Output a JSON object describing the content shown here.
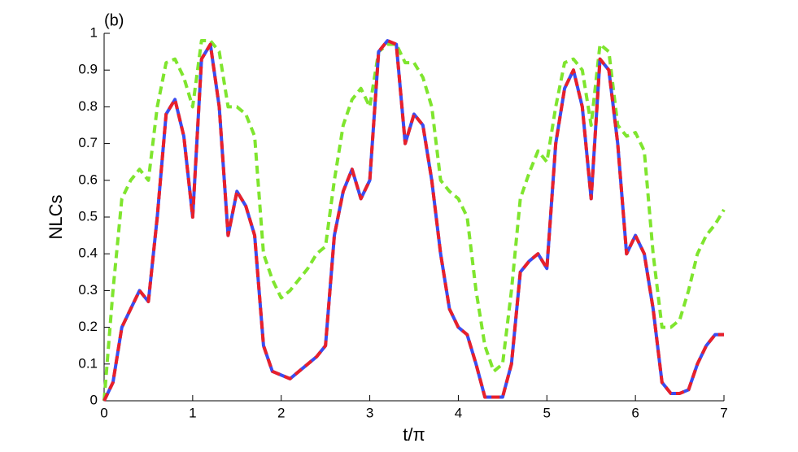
{
  "chart_data": {
    "type": "line",
    "panel_label": "(b)",
    "ylabel": "NLCs",
    "xlabel": "t/π",
    "x": [
      0,
      0.1,
      0.2,
      0.3,
      0.4,
      0.5,
      0.6,
      0.7,
      0.8,
      0.9,
      1,
      1.1,
      1.2,
      1.3,
      1.4,
      1.5,
      1.6,
      1.7,
      1.8,
      1.9,
      2,
      2.1,
      2.2,
      2.3,
      2.4,
      2.5,
      2.6,
      2.7,
      2.8,
      2.9,
      3,
      3.1,
      3.2,
      3.3,
      3.4,
      3.5,
      3.6,
      3.7,
      3.8,
      3.9,
      4,
      4.1,
      4.2,
      4.3,
      4.4,
      4.5,
      4.6,
      4.7,
      4.8,
      4.9,
      5,
      5.1,
      5.2,
      5.3,
      5.4,
      5.5,
      5.6,
      5.7,
      5.8,
      5.9,
      6,
      6.1,
      6.2,
      6.3,
      6.4,
      6.5,
      6.6,
      6.7,
      6.8,
      6.9,
      7
    ],
    "series": [
      {
        "color": "#7fe52e",
        "dash": "dashed",
        "values": [
          0,
          0.3,
          0.55,
          0.6,
          0.63,
          0.6,
          0.8,
          0.92,
          0.93,
          0.88,
          0.8,
          0.98,
          0.98,
          0.95,
          0.8,
          0.8,
          0.78,
          0.72,
          0.4,
          0.33,
          0.28,
          0.3,
          0.33,
          0.36,
          0.4,
          0.42,
          0.6,
          0.75,
          0.82,
          0.85,
          0.8,
          0.95,
          0.97,
          0.97,
          0.92,
          0.92,
          0.88,
          0.8,
          0.6,
          0.57,
          0.55,
          0.5,
          0.3,
          0.15,
          0.08,
          0.1,
          0.3,
          0.55,
          0.62,
          0.68,
          0.65,
          0.8,
          0.92,
          0.93,
          0.9,
          0.75,
          0.97,
          0.95,
          0.75,
          0.72,
          0.73,
          0.68,
          0.4,
          0.2,
          0.2,
          0.22,
          0.3,
          0.4,
          0.45,
          0.48,
          0.52
        ]
      },
      {
        "color": "#3b4cf0",
        "dash": "solid",
        "values": [
          0,
          0.05,
          0.2,
          0.25,
          0.3,
          0.27,
          0.5,
          0.78,
          0.82,
          0.72,
          0.5,
          0.93,
          0.97,
          0.8,
          0.45,
          0.57,
          0.53,
          0.45,
          0.15,
          0.08,
          0.07,
          0.06,
          0.08,
          0.1,
          0.12,
          0.15,
          0.45,
          0.57,
          0.63,
          0.55,
          0.6,
          0.95,
          0.98,
          0.97,
          0.7,
          0.78,
          0.75,
          0.6,
          0.4,
          0.25,
          0.2,
          0.18,
          0.1,
          0.01,
          0.01,
          0.01,
          0.1,
          0.35,
          0.38,
          0.4,
          0.36,
          0.7,
          0.85,
          0.9,
          0.8,
          0.55,
          0.93,
          0.9,
          0.7,
          0.4,
          0.45,
          0.4,
          0.25,
          0.05,
          0.02,
          0.02,
          0.03,
          0.1,
          0.15,
          0.18,
          0.18
        ]
      },
      {
        "color": "#e8202a",
        "dash": "dashed",
        "values": [
          0,
          0.05,
          0.2,
          0.25,
          0.3,
          0.27,
          0.5,
          0.78,
          0.82,
          0.72,
          0.5,
          0.93,
          0.97,
          0.8,
          0.45,
          0.57,
          0.53,
          0.45,
          0.15,
          0.08,
          0.07,
          0.06,
          0.08,
          0.1,
          0.12,
          0.15,
          0.45,
          0.57,
          0.63,
          0.55,
          0.6,
          0.95,
          0.98,
          0.97,
          0.7,
          0.78,
          0.75,
          0.6,
          0.4,
          0.25,
          0.2,
          0.18,
          0.1,
          0.01,
          0.01,
          0.01,
          0.1,
          0.35,
          0.38,
          0.4,
          0.36,
          0.7,
          0.85,
          0.9,
          0.8,
          0.55,
          0.93,
          0.9,
          0.7,
          0.4,
          0.45,
          0.4,
          0.25,
          0.05,
          0.02,
          0.02,
          0.03,
          0.1,
          0.15,
          0.18,
          0.18
        ]
      }
    ],
    "xlim": [
      0,
      7
    ],
    "xticks": [
      0,
      1,
      2,
      3,
      4,
      5,
      6,
      7
    ],
    "ylim": [
      0,
      1
    ],
    "yticks": [
      0,
      0.1,
      0.2,
      0.3,
      0.4,
      0.5,
      0.6,
      0.7,
      0.8,
      0.9,
      1
    ]
  }
}
